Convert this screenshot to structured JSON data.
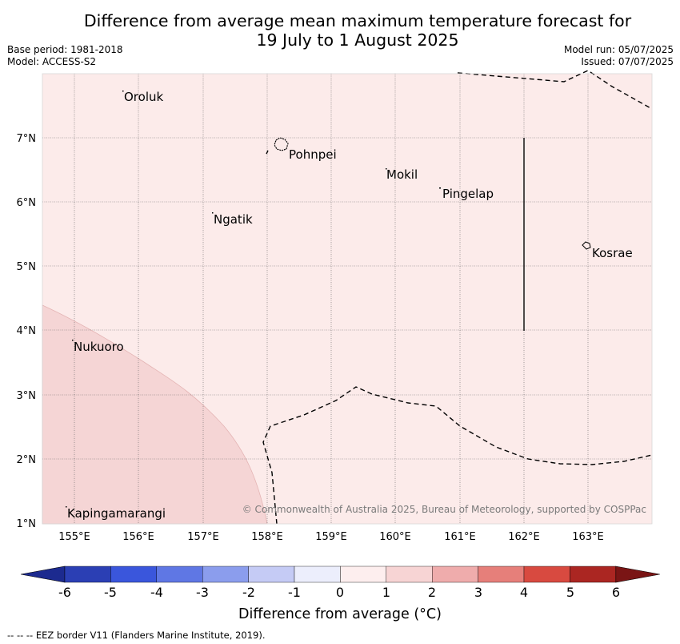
{
  "header": {
    "title_line1": "Difference from average mean maximum temperature forecast for",
    "title_line2": "19 July to 1 August 2025",
    "base_period": "Base period: 1981-2018",
    "model": "Model: ACCESS-S2",
    "model_run": "Model run: 05/07/2025",
    "issued": "Issued: 07/07/2025"
  },
  "map": {
    "lon_ticks": [
      "155°E",
      "156°E",
      "157°E",
      "158°E",
      "159°E",
      "160°E",
      "161°E",
      "162°E",
      "163°E"
    ],
    "lat_ticks": [
      "1°N",
      "2°N",
      "3°N",
      "4°N",
      "5°N",
      "6°N",
      "7°N"
    ],
    "places": [
      {
        "name": "Oroluk",
        "lon": 155.75,
        "lat": 7.65
      },
      {
        "name": "Pohnpei",
        "lon": 158.3,
        "lat": 6.85
      },
      {
        "name": "Mokil",
        "lon": 159.85,
        "lat": 6.5
      },
      {
        "name": "Pingelap",
        "lon": 160.7,
        "lat": 6.2
      },
      {
        "name": "Ngatik",
        "lon": 157.15,
        "lat": 5.8
      },
      {
        "name": "Kosrae",
        "lon": 163.0,
        "lat": 5.3
      },
      {
        "name": "Nukuoro",
        "lon": 154.95,
        "lat": 3.85
      },
      {
        "name": "Kapingamarangi",
        "lon": 154.8,
        "lat": 1.1
      }
    ],
    "copyright": "© Commonwealth of Australia 2025, Bureau of Meteorology, supported by COSPPac",
    "background_anomaly_band": "0 to 1",
    "southwest_anomaly_band": "1 to 2"
  },
  "colorbar": {
    "ticks": [
      "-6",
      "-5",
      "-4",
      "-3",
      "-2",
      "-1",
      "0",
      "1",
      "2",
      "3",
      "4",
      "5",
      "6"
    ],
    "colors": [
      "#1c2a8f",
      "#2b3fb4",
      "#3a56dc",
      "#5f77e4",
      "#8b9ded",
      "#c5cbf5",
      "#eceefc",
      "#fdeeee",
      "#f7d4d4",
      "#efacac",
      "#e67f7a",
      "#d84a40",
      "#ab2622",
      "#7a1515"
    ],
    "label": "Difference from average (°C)"
  },
  "footer": {
    "eez_legend": "--  --  -- EEZ border V11 (Flanders Marine Institute, 2019)."
  }
}
